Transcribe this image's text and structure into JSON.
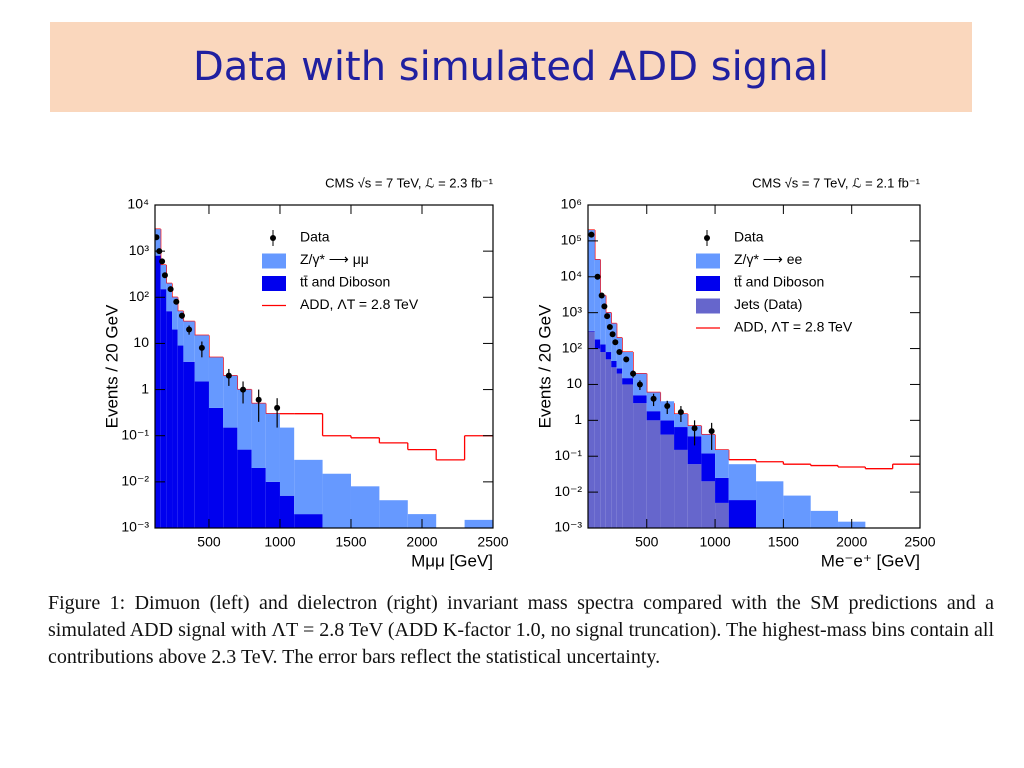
{
  "slide": {
    "title": "Data with simulated ADD signal",
    "caption": "Figure 1: Dimuon (left) and dielectron (right) invariant mass spectra compared with the SM predictions and a simulated ADD signal with ΛT = 2.8 TeV (ADD K-factor 1.0, no signal truncation). The highest-mass bins contain all contributions above 2.3 TeV. The error bars reflect the statistical uncertainty."
  },
  "chart_data": [
    {
      "type": "histogram",
      "annotation": "CMS √s = 7 TeV, ℒ = 2.3 fb⁻¹",
      "y_label": "Events / 20 GeV",
      "x_label": "Mμμ [GeV]",
      "log_y": true,
      "xlim": [
        120,
        2500
      ],
      "xticks": [
        500,
        1000,
        1500,
        2000,
        2500
      ],
      "ylim": [
        0.001,
        10000
      ],
      "yticks": [
        {
          "value": 0.001,
          "label": "10⁻³"
        },
        {
          "value": 0.01,
          "label": "10⁻²"
        },
        {
          "value": 0.1,
          "label": "10⁻¹"
        },
        1,
        10,
        {
          "value": 100,
          "label": "10²"
        },
        {
          "value": 1000,
          "label": "10³"
        },
        {
          "value": 10000,
          "label": "10⁴"
        }
      ],
      "bins": [
        120,
        160,
        200,
        240,
        280,
        320,
        400,
        500,
        600,
        700,
        800,
        900,
        1000,
        1100,
        1300,
        1500,
        1700,
        1900,
        2100,
        2300,
        2500
      ],
      "series": [
        {
          "name": "Data",
          "style": "points",
          "color": "#000000",
          "x": [
            130,
            150,
            170,
            190,
            230,
            270,
            310,
            360,
            450,
            640,
            740,
            850,
            980
          ],
          "values": [
            2000,
            1000,
            600,
            300,
            150,
            80,
            40,
            20,
            8,
            2,
            1,
            0.6,
            0.4
          ],
          "errors": [
            45,
            32,
            25,
            17,
            12,
            9,
            6,
            4.5,
            3,
            0.8,
            0.5,
            0.4,
            0.25
          ]
        },
        {
          "name": "Z/γ* ⟶ μμ",
          "style": "fill",
          "color": "#6699ff",
          "values": [
            2200,
            350,
            150,
            80,
            41,
            26,
            13.5,
            4.6,
            1.85,
            0.95,
            0.48,
            0.29,
            0.145,
            0.028,
            0.015,
            0.008,
            0.004,
            0.002,
            0,
            0.0015
          ]
        },
        {
          "name": "tt̄ and Diboson",
          "style": "fill",
          "color": "#0000ee",
          "values": [
            800,
            150,
            50,
            20,
            9,
            4,
            1.5,
            0.4,
            0.15,
            0.05,
            0.02,
            0.01,
            0.005,
            0.002,
            0,
            0,
            0,
            0,
            0,
            0
          ]
        },
        {
          "name": "ADD, ΛT = 2.8 TeV",
          "style": "step",
          "color": "#ff0000",
          "values": [
            3000,
            500,
            200,
            100,
            50,
            30,
            15,
            5,
            2,
            1,
            0.5,
            0.3,
            0.3,
            0.3,
            0.1,
            0.09,
            0.07,
            0.05,
            0.03,
            0.1
          ]
        }
      ]
    },
    {
      "type": "histogram",
      "annotation": "CMS √s = 7 TeV, ℒ = 2.1 fb⁻¹",
      "y_label": "Events / 20 GeV",
      "x_label": "Me⁻e⁺ [GeV]",
      "log_y": true,
      "xlim": [
        70,
        2500
      ],
      "xticks": [
        500,
        1000,
        1500,
        2000,
        2500
      ],
      "ylim": [
        0.001,
        1000000
      ],
      "yticks": [
        {
          "value": 0.001,
          "label": "10⁻³"
        },
        {
          "value": 0.01,
          "label": "10⁻²"
        },
        {
          "value": 0.1,
          "label": "10⁻¹"
        },
        1,
        10,
        {
          "value": 100,
          "label": "10²"
        },
        {
          "value": 1000,
          "label": "10³"
        },
        {
          "value": 10000,
          "label": "10⁴"
        },
        {
          "value": 100000,
          "label": "10⁵"
        },
        {
          "value": 1000000,
          "label": "10⁶"
        }
      ],
      "bins": [
        70,
        120,
        160,
        200,
        240,
        280,
        320,
        400,
        500,
        600,
        700,
        800,
        900,
        1000,
        1100,
        1300,
        1500,
        1700,
        1900,
        2100,
        2300,
        2500
      ],
      "series": [
        {
          "name": "Data",
          "style": "points",
          "color": "#000000",
          "x": [
            95,
            140,
            170,
            190,
            210,
            230,
            250,
            270,
            300,
            350,
            400,
            450,
            550,
            650,
            750,
            850,
            975
          ],
          "values": [
            150000,
            10000,
            3000,
            1500,
            800,
            400,
            250,
            150,
            80,
            50,
            20,
            10,
            4,
            2.5,
            1.7,
            0.6,
            0.5
          ],
          "errors": [
            400,
            100,
            55,
            40,
            28,
            20,
            16,
            12,
            9,
            7,
            4.5,
            3,
            1.5,
            1,
            0.8,
            0.4,
            0.35
          ]
        },
        {
          "name": "Z/γ* ⟶ ee",
          "style": "fill",
          "color": "#6699ff",
          "values": [
            200000,
            29820,
            2870,
            920,
            455,
            172,
            65,
            15,
            4.2,
            2.4,
            0.85,
            0.34,
            0.28,
            0.125,
            0.054,
            0.02,
            0.008,
            0.003,
            0.0015,
            0,
            0
          ]
        },
        {
          "name": "tt̄ and Diboson",
          "style": "fill",
          "color": "#0000ee",
          "values": [
            10,
            80,
            50,
            30,
            15,
            8,
            5,
            2,
            0.8,
            0.6,
            0.5,
            0.3,
            0.1,
            0.02,
            0.005,
            0,
            0,
            0,
            0,
            0,
            0
          ]
        },
        {
          "name": "Jets (Data)",
          "style": "fill",
          "color": "#6666cc",
          "values": [
            300,
            100,
            80,
            50,
            30,
            20,
            10,
            3,
            1,
            0.4,
            0.15,
            0.06,
            0.02,
            0.005,
            0.001,
            0,
            0,
            0,
            0,
            0,
            0
          ]
        },
        {
          "name": "ADD, ΛT = 2.8 TeV",
          "style": "step",
          "color": "#ff0000",
          "values": [
            200310,
            30000,
            3000,
            1000,
            500,
            200,
            80,
            20,
            6,
            3,
            1.5,
            0.7,
            0.4,
            0.15,
            0.08,
            0.07,
            0.06,
            0.055,
            0.05,
            0.045,
            0.06
          ]
        }
      ]
    }
  ]
}
